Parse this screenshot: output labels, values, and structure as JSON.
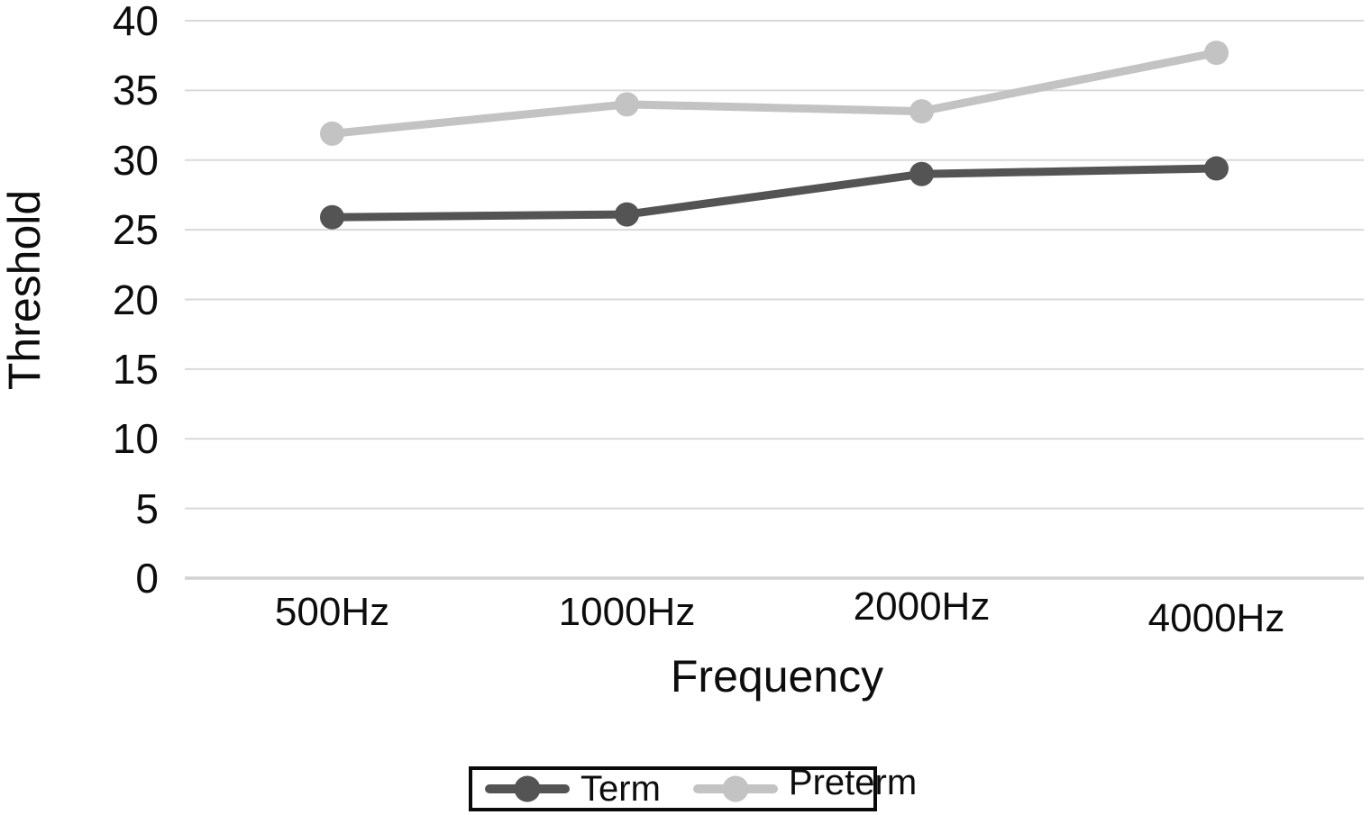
{
  "chart_data": {
    "type": "line",
    "title": "",
    "xlabel": "Frequency",
    "ylabel": "Threshold",
    "categories": [
      "500Hz",
      "1000Hz",
      "2000Hz",
      "4000Hz"
    ],
    "series": [
      {
        "name": "Term",
        "color": "#545454",
        "values": [
          25.9,
          26.1,
          29.0,
          29.4
        ]
      },
      {
        "name": "Preterm",
        "color": "#c3c3c3",
        "values": [
          31.9,
          34.0,
          33.5,
          37.7
        ]
      }
    ],
    "ylim": [
      0,
      40
    ],
    "yticks": [
      0,
      5,
      10,
      15,
      20,
      25,
      30,
      35,
      40
    ],
    "grid": "horizontal",
    "gridline_color": "#d9d9d9",
    "baseline_color": "#d2d2d2",
    "axis_text_color": "#0d0d0d",
    "legend_position": "bottom",
    "legend_border_color": "#0a0a0a",
    "background_color": "#ffffff"
  }
}
